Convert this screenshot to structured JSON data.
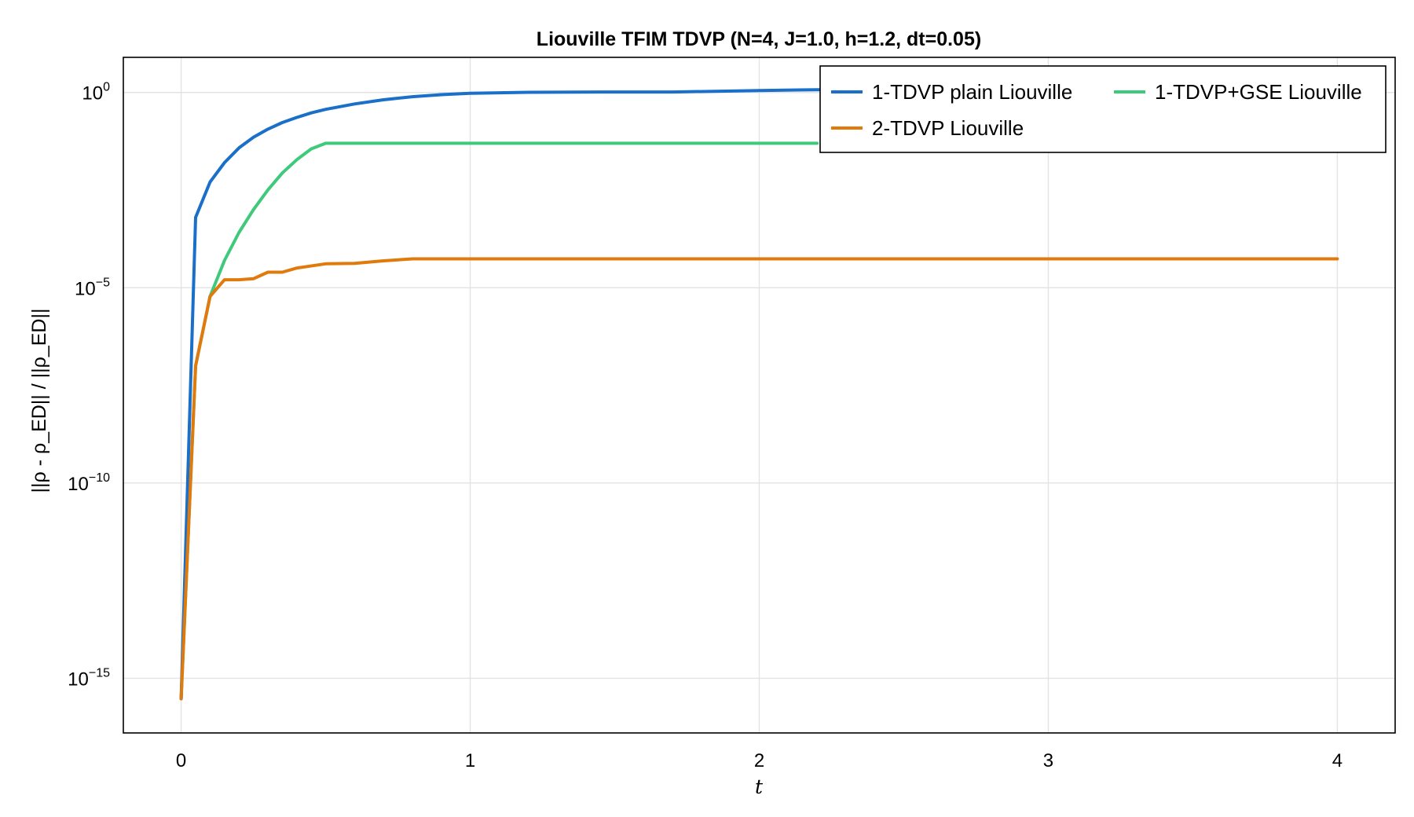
{
  "chart_data": {
    "type": "line",
    "title": "Liouville TFIM TDVP (N=4, J=1.0, h=1.2, dt=0.05)",
    "xlabel": "t",
    "ylabel": "||ρ - ρ_ED|| / ||ρ_ED||",
    "y_scale": "log10",
    "xlim": [
      -0.2,
      4.2
    ],
    "ylim": [
      -16.4,
      0.9
    ],
    "x_ticks": [
      0,
      1,
      2,
      3,
      4
    ],
    "x_tick_labels": [
      "0",
      "1",
      "2",
      "3",
      "4"
    ],
    "y_ticks": [
      {
        "value": 1,
        "base": "10",
        "exponent": "0"
      },
      {
        "value": 1e-05,
        "base": "10",
        "exponent": "−5"
      },
      {
        "value": 1e-10,
        "base": "10",
        "exponent": "−10"
      },
      {
        "value": 1e-15,
        "base": "10",
        "exponent": "−15"
      }
    ],
    "grid": true,
    "legend_position": "top-right",
    "legend_columns": 2,
    "series": [
      {
        "name": "1-TDVP plain Liouville",
        "color": "#1a6fc9",
        "x": [
          0,
          0.05,
          0.1,
          0.15,
          0.2,
          0.25,
          0.3,
          0.35,
          0.4,
          0.45,
          0.5,
          0.6,
          0.7,
          0.8,
          0.9,
          1.0,
          1.2,
          1.5,
          1.7,
          2.0,
          2.2,
          2.5
        ],
        "y": [
          3e-16,
          0.00063,
          0.0051,
          0.016,
          0.038,
          0.071,
          0.115,
          0.17,
          0.23,
          0.3,
          0.37,
          0.51,
          0.65,
          0.78,
          0.88,
          0.95,
          1.01,
          1.03,
          1.03,
          1.12,
          1.18,
          1.2
        ]
      },
      {
        "name": "2-TDVP Liouville",
        "color": "#e07a0c",
        "x": [
          0,
          0.05,
          0.1,
          0.15,
          0.2,
          0.25,
          0.3,
          0.35,
          0.4,
          0.5,
          0.6,
          0.7,
          0.8,
          1.0,
          2.0,
          3.0,
          4.0
        ],
        "y": [
          3e-16,
          1e-07,
          6e-06,
          1.6e-05,
          1.6e-05,
          1.7e-05,
          2.5e-05,
          2.5e-05,
          3.2e-05,
          4.1e-05,
          4.2e-05,
          4.9e-05,
          5.5e-05,
          5.5e-05,
          5.5e-05,
          5.5e-05,
          5.5e-05
        ]
      },
      {
        "name": "1-TDVP+GSE Liouville",
        "color": "#3ec97b",
        "x": [
          0,
          0.05,
          0.1,
          0.15,
          0.2,
          0.25,
          0.3,
          0.35,
          0.4,
          0.45,
          0.5,
          1.0,
          2.0,
          2.2
        ],
        "y": [
          3e-16,
          1e-07,
          6e-06,
          5e-05,
          0.00026,
          0.001,
          0.0032,
          0.0087,
          0.019,
          0.036,
          0.05,
          0.05,
          0.05,
          0.05
        ]
      }
    ],
    "legend_order": [
      "1-TDVP plain Liouville",
      "1-TDVP+GSE Liouville",
      "2-TDVP Liouville"
    ]
  }
}
